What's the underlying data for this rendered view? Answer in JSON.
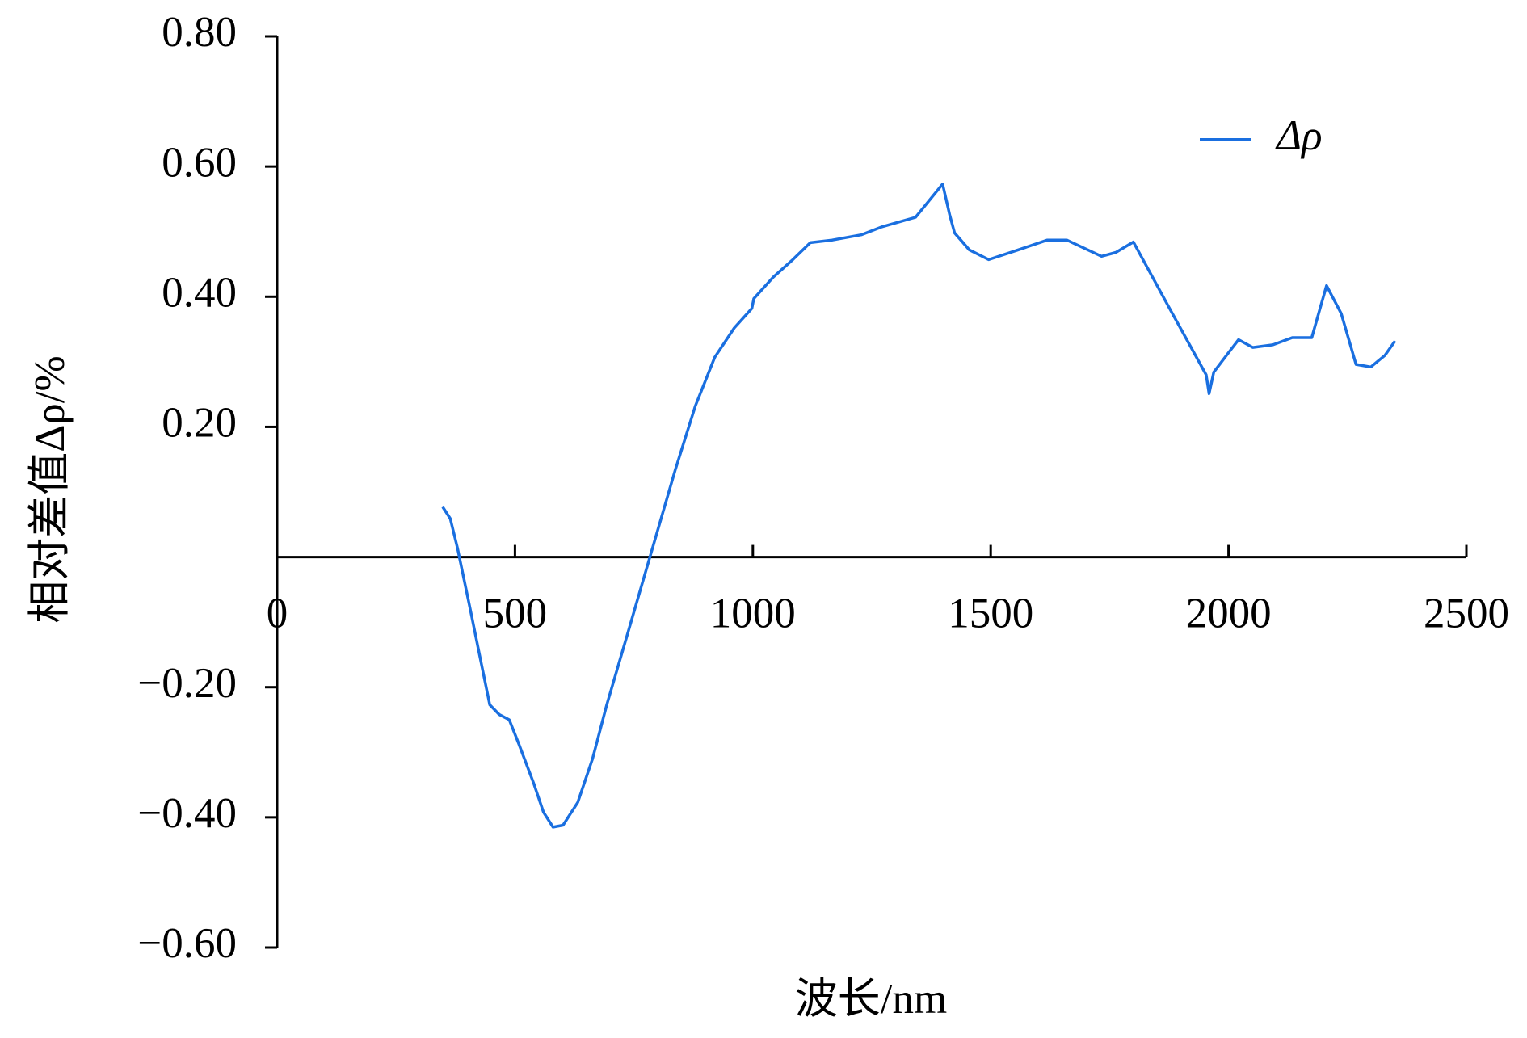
{
  "chart_data": {
    "type": "line",
    "xlabel": "波长/nm",
    "ylabel": "相对差值Δρ/%",
    "x": [
      348,
      364,
      379,
      405,
      426,
      447,
      467,
      488,
      508,
      539,
      560,
      580,
      601,
      632,
      663,
      693,
      735,
      765,
      792,
      837,
      879,
      920,
      961,
      998,
      1002,
      1043,
      1084,
      1121,
      1167,
      1228,
      1270,
      1342,
      1399,
      1414,
      1424,
      1455,
      1496,
      1558,
      1619,
      1660,
      1733,
      1763,
      1800,
      1876,
      1953,
      1959,
      1969,
      2000,
      2021,
      2051,
      2093,
      2134,
      2175,
      2206,
      2237,
      2268,
      2299,
      2329,
      2350
    ],
    "series": [
      {
        "name": "Δρ",
        "color": "#1a6fe0",
        "values": [
          0.077,
          0.059,
          0.014,
          -0.077,
          -0.152,
          -0.227,
          -0.242,
          -0.25,
          -0.287,
          -0.347,
          -0.392,
          -0.415,
          -0.412,
          -0.377,
          -0.31,
          -0.227,
          -0.122,
          -0.047,
          0.021,
          0.134,
          0.232,
          0.307,
          0.352,
          0.382,
          0.397,
          0.43,
          0.457,
          0.483,
          0.487,
          0.495,
          0.507,
          0.522,
          0.573,
          0.525,
          0.498,
          0.472,
          0.457,
          0.472,
          0.487,
          0.487,
          0.462,
          0.468,
          0.484,
          0.382,
          0.28,
          0.251,
          0.284,
          0.314,
          0.334,
          0.322,
          0.326,
          0.337,
          0.337,
          0.417,
          0.374,
          0.296,
          0.292,
          0.31,
          0.332
        ]
      }
    ],
    "xlim": [
      0,
      2500
    ],
    "xticks": [
      0,
      500,
      1000,
      1500,
      2000,
      2500
    ],
    "ylim": [
      -0.6,
      0.8
    ],
    "yticks": [
      {
        "value": -0.6,
        "label": "−0.60"
      },
      {
        "value": -0.4,
        "label": "−0.40"
      },
      {
        "value": -0.2,
        "label": "−0.20"
      },
      {
        "value": 0.2,
        "label": "0.20"
      },
      {
        "value": 0.4,
        "label": "0.40"
      },
      {
        "value": 0.6,
        "label": "0.60"
      },
      {
        "value": 0.8,
        "label": "0.80"
      }
    ],
    "legend": "upper-right",
    "grid": false
  }
}
